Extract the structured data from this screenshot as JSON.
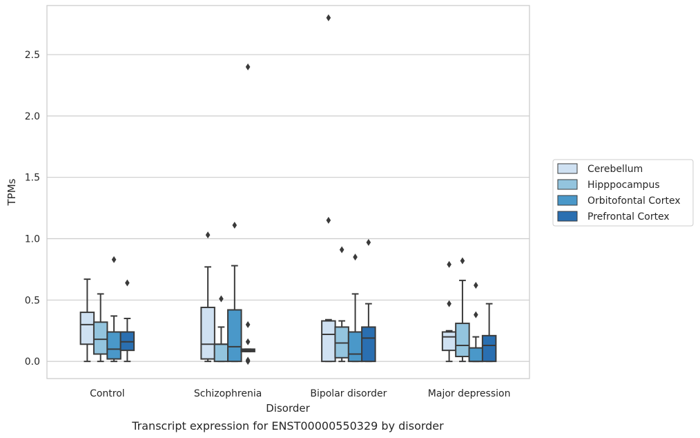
{
  "chart_data": {
    "type": "box",
    "title": "",
    "caption": "Transcript expression for ENST00000550329 by disorder",
    "xlabel": "Disorder",
    "ylabel": "TPMs",
    "ylim": [
      -0.14,
      2.9
    ],
    "yticks": [
      "0.0",
      "0.5",
      "1.0",
      "1.5",
      "2.0",
      "2.5"
    ],
    "grid": "horizontal",
    "legend_position": "right",
    "categories": [
      "Control",
      "Schizophrenia",
      "Bipolar disorder",
      "Major depression"
    ],
    "series": [
      {
        "name": "Cerebellum",
        "color": "#cfe1f2",
        "boxes": [
          {
            "whislo": 0.0,
            "q1": 0.14,
            "med": 0.3,
            "q3": 0.4,
            "whishi": 0.67,
            "fliers": []
          },
          {
            "whislo": 0.0,
            "q1": 0.02,
            "med": 0.14,
            "q3": 0.44,
            "whishi": 0.77,
            "fliers": [
              1.03
            ]
          },
          {
            "whislo": 0.0,
            "q1": 0.0,
            "med": 0.22,
            "q3": 0.33,
            "whishi": 0.34,
            "fliers": [
              1.15,
              2.8
            ]
          },
          {
            "whislo": 0.0,
            "q1": 0.09,
            "med": 0.2,
            "q3": 0.24,
            "whishi": 0.25,
            "fliers": [
              0.47,
              0.79
            ]
          }
        ]
      },
      {
        "name": "Hipppocampus",
        "color": "#93c4de",
        "boxes": [
          {
            "whislo": 0.0,
            "q1": 0.06,
            "med": 0.18,
            "q3": 0.32,
            "whishi": 0.55,
            "fliers": []
          },
          {
            "whislo": 0.0,
            "q1": 0.0,
            "med": 0.14,
            "q3": 0.14,
            "whishi": 0.28,
            "fliers": [
              0.51
            ]
          },
          {
            "whislo": 0.0,
            "q1": 0.03,
            "med": 0.15,
            "q3": 0.28,
            "whishi": 0.33,
            "fliers": [
              0.91
            ]
          },
          {
            "whislo": 0.0,
            "q1": 0.04,
            "med": 0.13,
            "q3": 0.31,
            "whishi": 0.66,
            "fliers": [
              0.82
            ]
          }
        ]
      },
      {
        "name": "Orbitofontal Cortex",
        "color": "#4a98c9",
        "boxes": [
          {
            "whislo": 0.0,
            "q1": 0.02,
            "med": 0.1,
            "q3": 0.24,
            "whishi": 0.37,
            "fliers": [
              0.83
            ]
          },
          {
            "whislo": 0.0,
            "q1": 0.0,
            "med": 0.12,
            "q3": 0.42,
            "whishi": 0.78,
            "fliers": [
              1.11
            ]
          },
          {
            "whislo": 0.0,
            "q1": 0.0,
            "med": 0.06,
            "q3": 0.24,
            "whishi": 0.55,
            "fliers": [
              0.85
            ]
          },
          {
            "whislo": 0.0,
            "q1": 0.0,
            "med": 0.0,
            "q3": 0.11,
            "whishi": 0.2,
            "fliers": [
              0.38,
              0.62
            ]
          }
        ]
      },
      {
        "name": "Prefrontal Cortex",
        "color": "#2a6fb1",
        "boxes": [
          {
            "whislo": 0.0,
            "q1": 0.09,
            "med": 0.16,
            "q3": 0.24,
            "whishi": 0.35,
            "fliers": [
              0.64
            ]
          },
          {
            "whislo": 0.08,
            "q1": 0.08,
            "med": 0.09,
            "q3": 0.1,
            "whishi": 0.1,
            "fliers": [
              0.0,
              0.01,
              0.16,
              0.3,
              2.4
            ]
          },
          {
            "whislo": 0.0,
            "q1": 0.0,
            "med": 0.19,
            "q3": 0.28,
            "whishi": 0.47,
            "fliers": [
              0.97
            ]
          },
          {
            "whislo": 0.0,
            "q1": 0.0,
            "med": 0.13,
            "q3": 0.21,
            "whishi": 0.47,
            "fliers": []
          }
        ]
      }
    ]
  }
}
